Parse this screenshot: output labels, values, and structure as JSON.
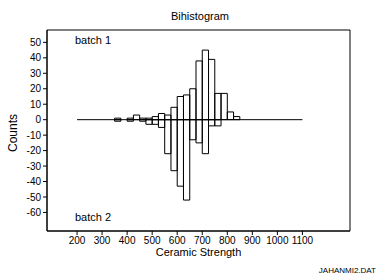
{
  "chart_data": {
    "type": "histogram",
    "title": "Bihistogram",
    "x_label": "Ceramic Strength",
    "y_label": "Counts",
    "footnote": "JAHANMI2.DAT",
    "bins": [
      300,
      325,
      350,
      375,
      400,
      425,
      450,
      475,
      500,
      525,
      550,
      575,
      600,
      625,
      650,
      675,
      700,
      725,
      750,
      775,
      800,
      825,
      850
    ],
    "series": [
      {
        "name": "batch 1",
        "color": "#000000",
        "values": [
          0,
          0,
          1,
          0,
          1,
          3,
          1,
          1,
          2,
          4,
          3,
          8,
          15,
          16,
          20,
          38,
          45,
          39,
          17,
          17,
          5,
          2
        ]
      },
      {
        "name": "batch 2",
        "color": "#000000",
        "values": [
          0,
          0,
          -1,
          0,
          -1,
          0,
          -1,
          -3,
          -3,
          -5,
          -22,
          -33,
          -43,
          -52,
          -13,
          -15,
          -22,
          -4,
          -4,
          0,
          0,
          0
        ]
      }
    ],
    "xlim": [
      80,
      1290
    ],
    "ylim": [
      -72,
      58
    ],
    "xticks": [
      200,
      300,
      400,
      500,
      600,
      700,
      800,
      900,
      1000,
      1100
    ],
    "yticks": [
      -60,
      -50,
      -40,
      -30,
      -20,
      -10,
      0,
      10,
      20,
      30,
      40,
      50
    ]
  }
}
